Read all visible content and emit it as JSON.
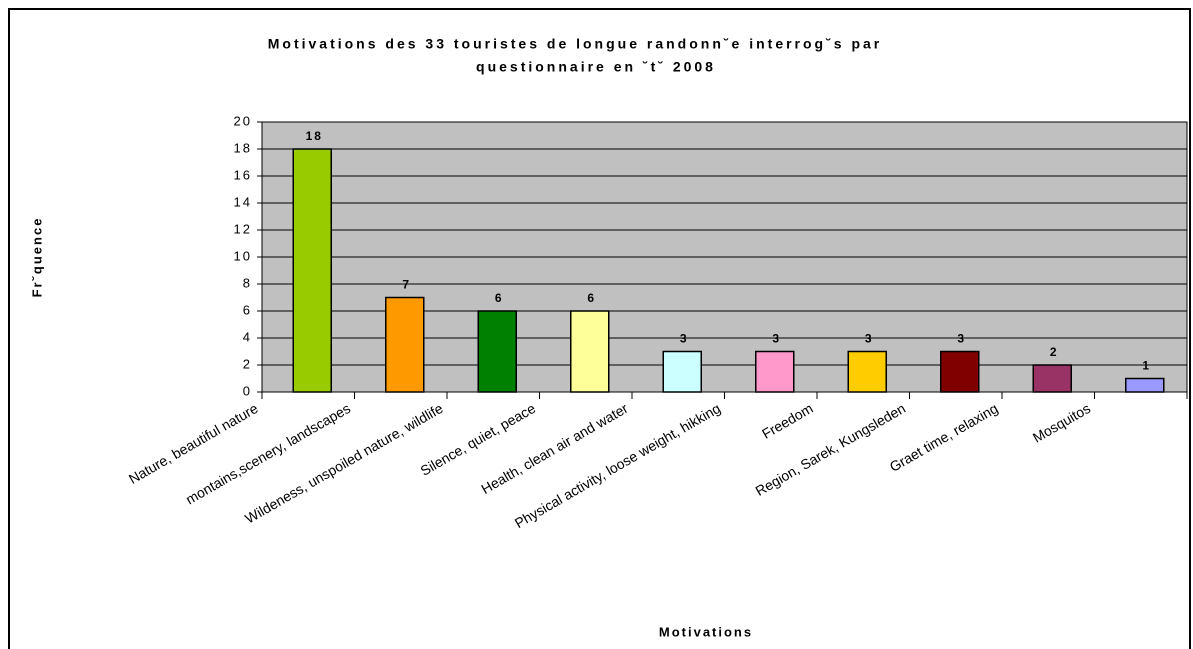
{
  "chart_data": {
    "type": "bar",
    "title": [
      "Motivations des 33 touristes de longue randonn˘e interrog˘s par",
      "questionnaire en ˘t˘ 2008"
    ],
    "x_label": "Motivations",
    "y_label": "Fr˘quence",
    "categories": [
      "Nature, beautiful nature",
      "montains,scenery, landscapes",
      "Wildeness, unspoiled nature, wildlife",
      "Silence, quiet, peace",
      "Health, clean air and water",
      "Physical activity, loose weight, hikking",
      "Freedom",
      "Region, Sarek, Kungsleden",
      "Graet time, relaxing",
      "Mosquitos"
    ],
    "values": [
      18,
      7,
      6,
      6,
      3,
      3,
      3,
      3,
      2,
      1
    ],
    "colors": [
      "#99cc00",
      "#ff9900",
      "#008000",
      "#ffff99",
      "#ccffff",
      "#ff99cc",
      "#ffcc00",
      "#800000",
      "#993366",
      "#9999ff"
    ],
    "ylim": [
      0,
      20
    ],
    "yticks": [
      0,
      2,
      4,
      6,
      8,
      10,
      12,
      14,
      16,
      18,
      20
    ],
    "grid": true,
    "plot_background": "#c0c0c0"
  }
}
